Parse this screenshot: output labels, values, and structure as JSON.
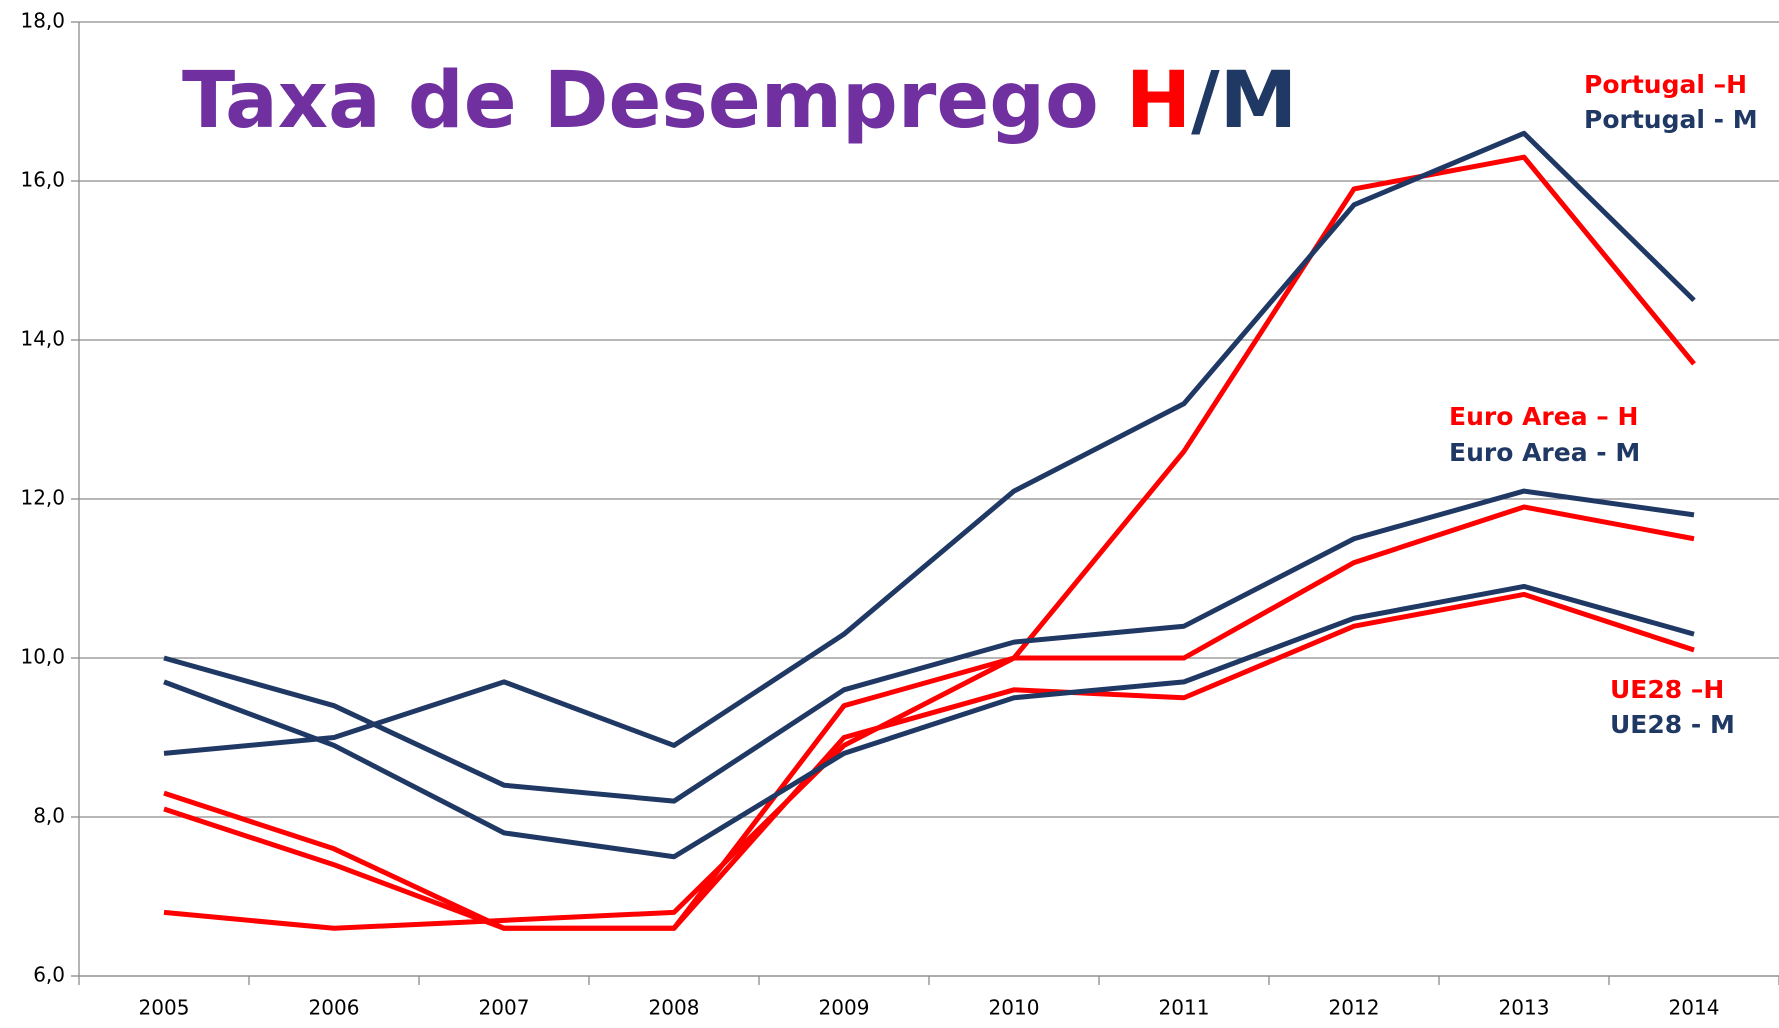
{
  "chart_data": {
    "type": "line",
    "title_segments": [
      {
        "text": "Taxa de Desemprego ",
        "color": "#7030a0"
      },
      {
        "text": "H",
        "color": "#ff0000"
      },
      {
        "text": "/M",
        "color": "#1f3864"
      }
    ],
    "categories": [
      "2005",
      "2006",
      "2007",
      "2008",
      "2009",
      "2010",
      "2011",
      "2012",
      "2013",
      "2014"
    ],
    "series": [
      {
        "name": "Portugal –H",
        "color": "#ff0000",
        "values": [
          6.8,
          6.6,
          6.7,
          6.8,
          8.9,
          10.0,
          12.6,
          15.9,
          16.3,
          13.7
        ]
      },
      {
        "name": "Portugal - M",
        "color": "#1f3864",
        "values": [
          8.8,
          9.0,
          9.7,
          8.9,
          10.3,
          12.1,
          13.2,
          15.7,
          16.6,
          14.5
        ]
      },
      {
        "name": "Euro Area – H",
        "color": "#ff0000",
        "values": [
          8.3,
          7.6,
          6.6,
          6.6,
          9.4,
          10.0,
          10.0,
          11.2,
          11.9,
          11.5
        ]
      },
      {
        "name": "Euro Area - M",
        "color": "#1f3864",
        "values": [
          10.0,
          9.4,
          8.4,
          8.2,
          9.6,
          10.2,
          10.4,
          11.5,
          12.1,
          11.8
        ]
      },
      {
        "name": "UE28 –H",
        "color": "#ff0000",
        "values": [
          8.1,
          7.4,
          6.6,
          6.6,
          9.0,
          9.6,
          9.5,
          10.4,
          10.8,
          10.1
        ]
      },
      {
        "name": "UE28 - M",
        "color": "#1f3864",
        "values": [
          9.7,
          8.9,
          7.8,
          7.5,
          8.8,
          9.5,
          9.7,
          10.5,
          10.9,
          10.3
        ]
      }
    ],
    "ylim": [
      6,
      18
    ],
    "yticks": [
      {
        "value": 6,
        "label": "6,0"
      },
      {
        "value": 8,
        "label": "8,0"
      },
      {
        "value": 10,
        "label": "10,0"
      },
      {
        "value": 12,
        "label": "12,0"
      },
      {
        "value": 14,
        "label": "14,0"
      },
      {
        "value": 16,
        "label": "16,0"
      },
      {
        "value": 18,
        "label": "18,0"
      }
    ],
    "grid": true
  }
}
